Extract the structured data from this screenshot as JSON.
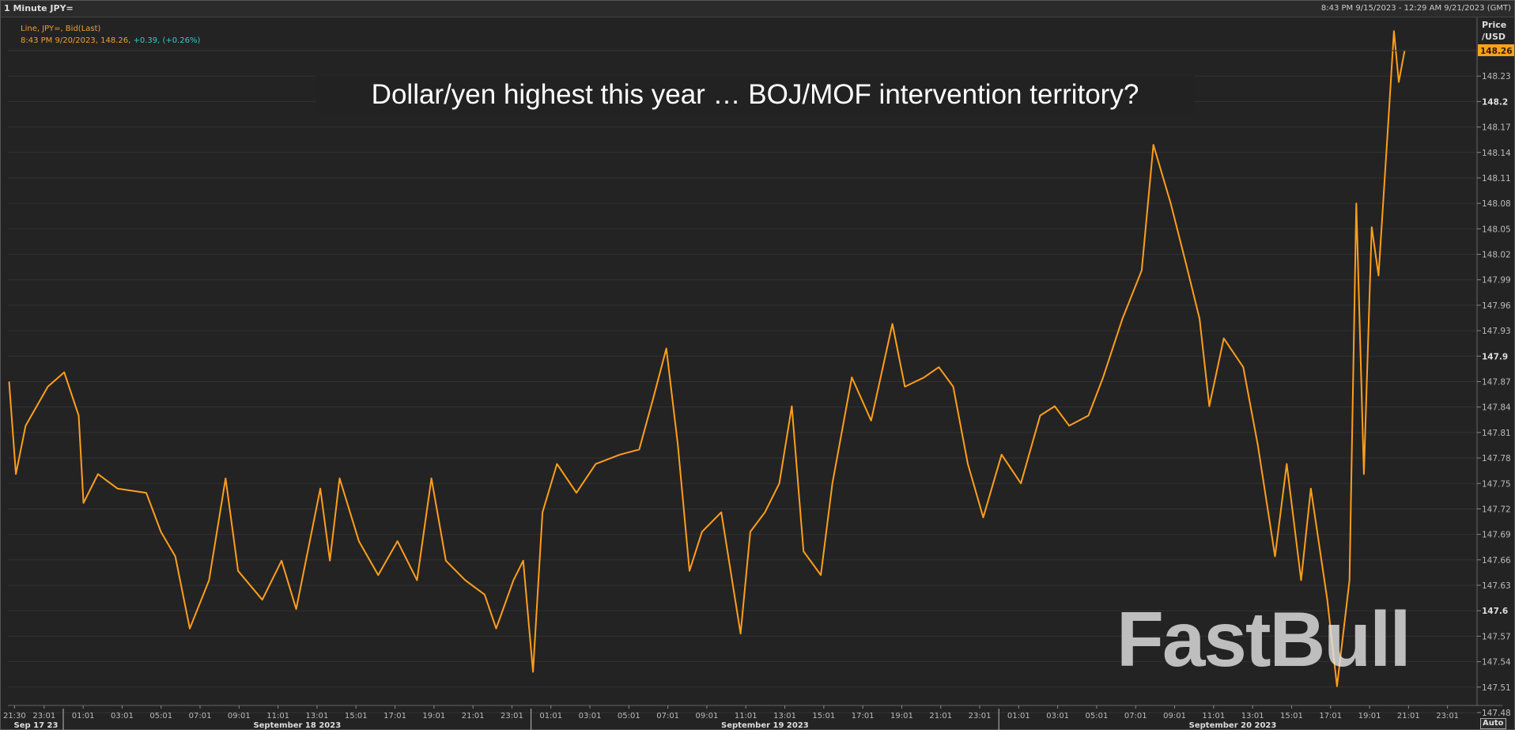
{
  "window": {
    "title": "1 Minute JPY=",
    "range": "8:43 PM 9/15/2023 - 12:29 AM 9/21/2023 (GMT)"
  },
  "legend": {
    "line1": "Line, JPY=, Bid(Last)",
    "line2_prefix": "8:43 PM 9/20/2023, 148.26, ",
    "line2_change": "+0.39, (+0.26%)"
  },
  "axis_header": {
    "line1": "Price",
    "line2": "/USD"
  },
  "auto_button": "Auto",
  "headline": "Dollar/yen highest this year … BOJ/MOF intervention territory?",
  "watermark": "FastBull",
  "colors": {
    "line": "#ff9e1b",
    "last_price_bg": "#f7a21b",
    "change": "#35c9c9",
    "background": "#232323",
    "grid": "#333333"
  },
  "chart_data": {
    "type": "line",
    "title": "Dollar/yen highest this year … BOJ/MOF intervention territory?",
    "xlabel": "",
    "ylabel": "Price /USD",
    "x_units": "hours since Sep 18 2023 00:00 GMT",
    "xlim": [
      -2.8,
      72
    ],
    "ylim": [
      147.465,
      148.3
    ],
    "grid": true,
    "last_price": "148.26",
    "series": [
      {
        "name": "JPY= Bid(Last)",
        "x": [
          -2.78,
          -2.43,
          -1.93,
          -0.79,
          0.05,
          0.79,
          1.04,
          1.78,
          2.78,
          4.26,
          5.01,
          5.75,
          6.49,
          7.48,
          8.33,
          8.97,
          10.21,
          11.2,
          11.95,
          13.19,
          13.68,
          14.18,
          15.17,
          16.16,
          17.15,
          18.15,
          18.89,
          19.63,
          20.62,
          21.62,
          22.21,
          23.1,
          23.6,
          24.1,
          24.59,
          25.33,
          26.33,
          27.32,
          28.56,
          29.55,
          30.29,
          30.94,
          31.53,
          32.13,
          32.77,
          33.76,
          34.75,
          35.25,
          36.0,
          36.74,
          37.38,
          37.98,
          38.87,
          39.46,
          40.46,
          41.45,
          42.54,
          43.18,
          44.17,
          44.92,
          45.66,
          46.41,
          47.2,
          48.14,
          49.13,
          50.12,
          50.87,
          51.61,
          52.6,
          53.35,
          54.34,
          55.33,
          55.93,
          56.82,
          57.57,
          58.3,
          58.8,
          59.54,
          60.54,
          61.28,
          62.17,
          62.77,
          63.51,
          64.01,
          64.85,
          65.35,
          65.99,
          66.34,
          66.73,
          67.13,
          67.48,
          67.97,
          68.27,
          68.52,
          68.82
        ],
        "y": [
          147.87,
          147.761,
          147.818,
          147.864,
          147.881,
          147.83,
          147.727,
          147.761,
          147.744,
          147.739,
          147.693,
          147.664,
          147.579,
          147.636,
          147.756,
          147.647,
          147.613,
          147.659,
          147.602,
          147.744,
          147.659,
          147.756,
          147.682,
          147.642,
          147.682,
          147.636,
          147.756,
          147.659,
          147.636,
          147.619,
          147.579,
          147.636,
          147.659,
          147.528,
          147.716,
          147.773,
          147.739,
          147.773,
          147.784,
          147.79,
          147.852,
          147.909,
          147.796,
          147.647,
          147.693,
          147.716,
          147.573,
          147.693,
          147.716,
          147.75,
          147.841,
          147.67,
          147.642,
          147.75,
          147.875,
          147.824,
          147.938,
          147.864,
          147.875,
          147.887,
          147.864,
          147.773,
          147.71,
          147.784,
          147.75,
          147.83,
          147.841,
          147.818,
          147.83,
          147.875,
          147.944,
          148.001,
          148.149,
          148.08,
          148.012,
          147.944,
          147.841,
          147.921,
          147.887,
          147.796,
          147.664,
          147.773,
          147.636,
          147.744,
          147.613,
          147.511,
          147.636,
          148.08,
          147.761,
          148.052,
          147.995,
          148.172,
          148.283,
          148.223,
          148.26
        ]
      }
    ],
    "y_ticks": [
      {
        "v": 148.23,
        "label": "148.23"
      },
      {
        "v": 148.2,
        "label": "148.2",
        "bold": true
      },
      {
        "v": 148.17,
        "label": "148.17"
      },
      {
        "v": 148.14,
        "label": "148.14"
      },
      {
        "v": 148.11,
        "label": "148.11"
      },
      {
        "v": 148.08,
        "label": "148.08"
      },
      {
        "v": 148.05,
        "label": "148.05"
      },
      {
        "v": 148.02,
        "label": "148.02"
      },
      {
        "v": 147.99,
        "label": "147.99"
      },
      {
        "v": 147.96,
        "label": "147.96"
      },
      {
        "v": 147.93,
        "label": "147.93"
      },
      {
        "v": 147.9,
        "label": "147.9",
        "bold": true
      },
      {
        "v": 147.87,
        "label": "147.87"
      },
      {
        "v": 147.84,
        "label": "147.84"
      },
      {
        "v": 147.81,
        "label": "147.81"
      },
      {
        "v": 147.78,
        "label": "147.78"
      },
      {
        "v": 147.75,
        "label": "147.75"
      },
      {
        "v": 147.72,
        "label": "147.72"
      },
      {
        "v": 147.69,
        "label": "147.69"
      },
      {
        "v": 147.66,
        "label": "147.66"
      },
      {
        "v": 147.63,
        "label": "147.63"
      },
      {
        "v": 147.6,
        "label": "147.6",
        "bold": true
      },
      {
        "v": 147.57,
        "label": "147.57"
      },
      {
        "v": 147.54,
        "label": "147.54"
      },
      {
        "v": 147.51,
        "label": "147.51"
      },
      {
        "v": 147.48,
        "label": "147.48"
      }
    ],
    "x_ticks": [
      {
        "t": -2.5,
        "label": "21:30"
      },
      {
        "t": -0.98,
        "label": "23:01"
      },
      {
        "t": 1.02,
        "label": "01:01"
      },
      {
        "t": 3.02,
        "label": "03:01"
      },
      {
        "t": 5.02,
        "label": "05:01"
      },
      {
        "t": 7.02,
        "label": "07:01"
      },
      {
        "t": 9.02,
        "label": "09:01"
      },
      {
        "t": 11.02,
        "label": "11:01"
      },
      {
        "t": 13.02,
        "label": "13:01"
      },
      {
        "t": 15.02,
        "label": "15:01"
      },
      {
        "t": 17.02,
        "label": "17:01"
      },
      {
        "t": 19.02,
        "label": "19:01"
      },
      {
        "t": 21.02,
        "label": "21:01"
      },
      {
        "t": 23.02,
        "label": "23:01"
      },
      {
        "t": 25.02,
        "label": "01:01"
      },
      {
        "t": 27.02,
        "label": "03:01"
      },
      {
        "t": 29.02,
        "label": "05:01"
      },
      {
        "t": 31.02,
        "label": "07:01"
      },
      {
        "t": 33.02,
        "label": "09:01"
      },
      {
        "t": 35.02,
        "label": "11:01"
      },
      {
        "t": 37.02,
        "label": "13:01"
      },
      {
        "t": 39.02,
        "label": "15:01"
      },
      {
        "t": 41.02,
        "label": "17:01"
      },
      {
        "t": 43.02,
        "label": "19:01"
      },
      {
        "t": 45.02,
        "label": "21:01"
      },
      {
        "t": 47.02,
        "label": "23:01"
      },
      {
        "t": 49.02,
        "label": "01:01"
      },
      {
        "t": 51.02,
        "label": "03:01"
      },
      {
        "t": 53.02,
        "label": "05:01"
      },
      {
        "t": 55.02,
        "label": "07:01"
      },
      {
        "t": 57.02,
        "label": "09:01"
      },
      {
        "t": 59.02,
        "label": "11:01"
      },
      {
        "t": 61.02,
        "label": "13:01"
      },
      {
        "t": 63.02,
        "label": "15:01"
      },
      {
        "t": 65.02,
        "label": "17:01"
      },
      {
        "t": 67.02,
        "label": "19:01"
      },
      {
        "t": 69.02,
        "label": "21:01"
      },
      {
        "t": 71.02,
        "label": "23:01"
      }
    ],
    "day_labels": [
      {
        "start": -2.8,
        "end": 0,
        "label": "Sep 17 23"
      },
      {
        "start": 0,
        "end": 24,
        "label": "September 18 2023"
      },
      {
        "start": 24,
        "end": 48,
        "label": "September 19 2023"
      },
      {
        "start": 48,
        "end": 72,
        "label": "September 20 2023"
      }
    ]
  }
}
